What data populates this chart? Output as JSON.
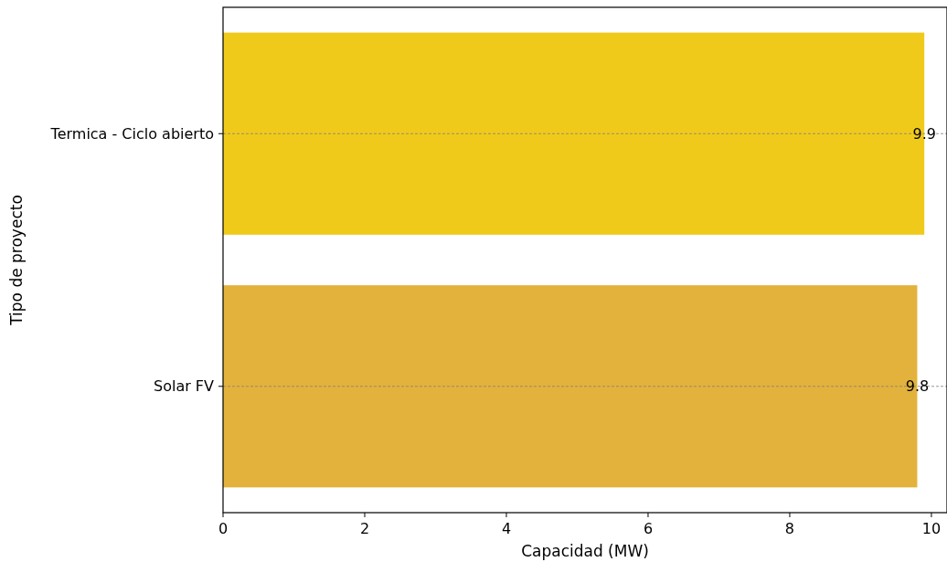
{
  "chart_data": {
    "type": "bar",
    "orientation": "horizontal",
    "xlabel": "Capacidad (MW)",
    "ylabel": "Tipo de proyecto",
    "categories": [
      "Termica - Ciclo abierto",
      "Solar FV"
    ],
    "values": [
      9.9,
      9.8
    ],
    "colors": [
      "#f0ca1a",
      "#e3b23c"
    ],
    "xlim": [
      0,
      10.22
    ],
    "xticks": [
      0,
      2,
      4,
      6,
      8,
      10
    ],
    "grid": "y",
    "data_labels": true
  }
}
